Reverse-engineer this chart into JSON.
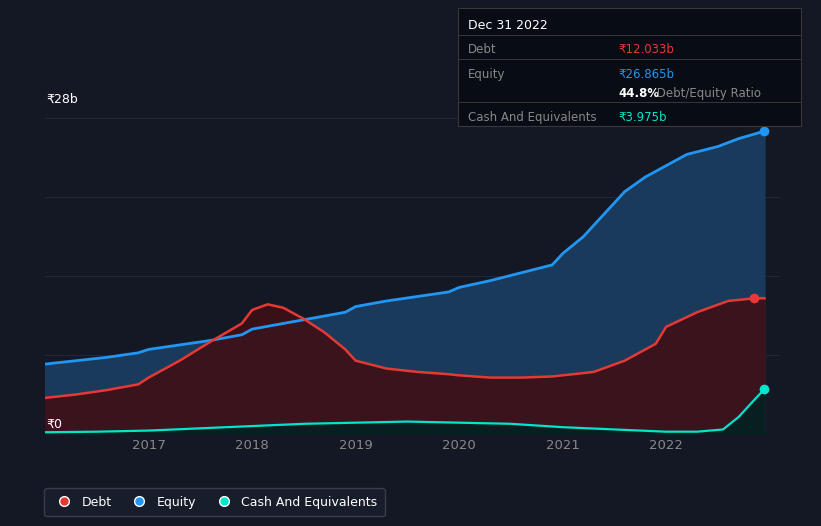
{
  "bg_color": "#141824",
  "plot_bg_color": "#141824",
  "tooltip": {
    "date": "Dec 31 2022",
    "debt_label": "Debt",
    "debt_value": "₹12.033b",
    "equity_label": "Equity",
    "equity_value": "₹26.865b",
    "ratio_pct": "44.8%",
    "ratio_text": " Debt/Equity Ratio",
    "cash_label": "Cash And Equivalents",
    "cash_value": "₹3.975b"
  },
  "ylabel_top": "₹28b",
  "ylabel_bottom": "₹0",
  "x_ticks": [
    "2017",
    "2018",
    "2019",
    "2020",
    "2021",
    "2022"
  ],
  "x_tick_positions": [
    2017,
    2018,
    2019,
    2020,
    2021,
    2022
  ],
  "equity": {
    "x": [
      2016.0,
      2016.3,
      2016.6,
      2016.9,
      2017.0,
      2017.3,
      2017.6,
      2017.9,
      2018.0,
      2018.3,
      2018.6,
      2018.9,
      2019.0,
      2019.3,
      2019.6,
      2019.9,
      2020.0,
      2020.3,
      2020.6,
      2020.9,
      2021.0,
      2021.2,
      2021.4,
      2021.6,
      2021.8,
      2022.0,
      2022.2,
      2022.5,
      2022.7,
      2022.95
    ],
    "y": [
      6.2,
      6.5,
      6.8,
      7.2,
      7.5,
      7.9,
      8.3,
      8.8,
      9.3,
      9.8,
      10.3,
      10.8,
      11.3,
      11.8,
      12.2,
      12.6,
      13.0,
      13.6,
      14.3,
      15.0,
      16.0,
      17.5,
      19.5,
      21.5,
      22.8,
      23.8,
      24.8,
      25.5,
      26.2,
      26.865
    ],
    "color": "#2196f3",
    "fill_color": "#1a3a5c",
    "label": "Equity"
  },
  "debt": {
    "x": [
      2016.0,
      2016.3,
      2016.6,
      2016.9,
      2017.0,
      2017.3,
      2017.6,
      2017.9,
      2018.0,
      2018.15,
      2018.3,
      2018.5,
      2018.7,
      2018.9,
      2019.0,
      2019.3,
      2019.6,
      2019.9,
      2020.0,
      2020.3,
      2020.6,
      2020.9,
      2021.0,
      2021.3,
      2021.6,
      2021.9,
      2022.0,
      2022.3,
      2022.6,
      2022.85,
      2022.95
    ],
    "y": [
      3.2,
      3.5,
      3.9,
      4.4,
      5.0,
      6.5,
      8.2,
      9.8,
      11.0,
      11.5,
      11.2,
      10.2,
      9.0,
      7.5,
      6.5,
      5.8,
      5.5,
      5.3,
      5.2,
      5.0,
      5.0,
      5.1,
      5.2,
      5.5,
      6.5,
      8.0,
      9.5,
      10.8,
      11.8,
      12.033,
      12.033
    ],
    "color": "#e53935",
    "fill_color": "#3d1018",
    "label": "Debt"
  },
  "cash": {
    "x": [
      2016.0,
      2016.5,
      2017.0,
      2017.5,
      2018.0,
      2018.5,
      2019.0,
      2019.5,
      2020.0,
      2020.5,
      2021.0,
      2021.5,
      2022.0,
      2022.3,
      2022.55,
      2022.7,
      2022.85,
      2022.95
    ],
    "y": [
      0.15,
      0.2,
      0.3,
      0.5,
      0.7,
      0.9,
      1.0,
      1.1,
      1.0,
      0.9,
      0.6,
      0.4,
      0.2,
      0.2,
      0.4,
      1.5,
      3.0,
      3.975
    ],
    "color": "#00e5cc",
    "fill_color": "#002222",
    "label": "Cash And Equivalents"
  },
  "legend": [
    {
      "label": "Debt",
      "color": "#e53935"
    },
    {
      "label": "Equity",
      "color": "#2196f3"
    },
    {
      "label": "Cash And Equivalents",
      "color": "#00e5cc"
    }
  ],
  "ylim": [
    0,
    28
  ],
  "xlim": [
    2016.0,
    2023.1
  ],
  "grid_color": "#252a3a",
  "text_color": "#888888",
  "white": "#ffffff",
  "tooltip_bg": "#080c14",
  "tooltip_border": "#383838"
}
